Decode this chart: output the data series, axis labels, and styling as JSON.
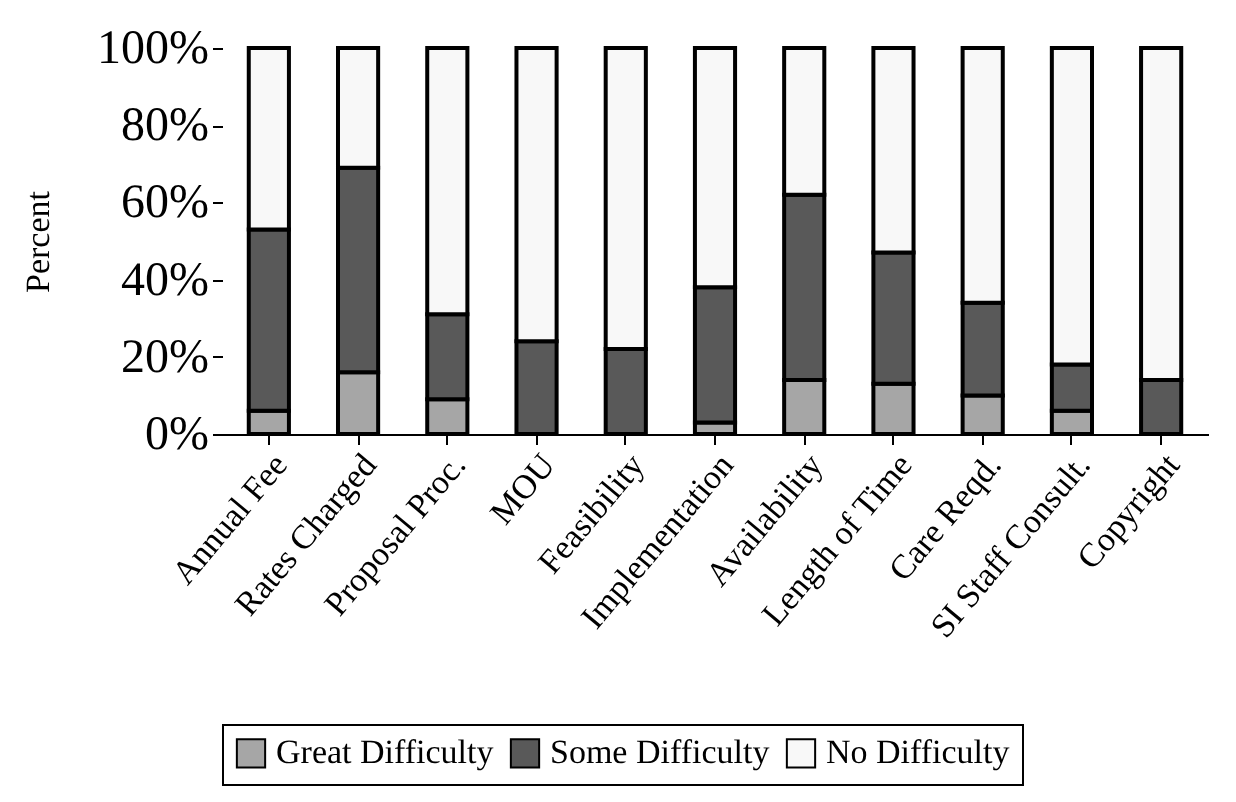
{
  "chart_data": {
    "type": "bar",
    "stacked": true,
    "ylabel": "Percent",
    "categories": [
      "Annual Fee",
      "Rates Charged",
      "Proposal Proc.",
      "MOU",
      "Feasibility",
      "Implementation",
      "Availability",
      "Length of Time",
      "Care Reqd.",
      "SI Staff Consult.",
      "Copyright"
    ],
    "series": [
      {
        "name": "Great Difficulty",
        "color": "#a6a6a6",
        "values": [
          6,
          16,
          9,
          0,
          0,
          3,
          14,
          13,
          10,
          6,
          0
        ]
      },
      {
        "name": "Some Difficulty",
        "color": "#595959",
        "values": [
          47,
          53,
          22,
          24,
          22,
          35,
          48,
          34,
          24,
          12,
          14
        ]
      },
      {
        "name": "No Difficulty",
        "color": "#f8f8f8",
        "values": [
          47,
          31,
          69,
          76,
          78,
          62,
          38,
          53,
          66,
          82,
          86
        ]
      }
    ],
    "ylim": [
      0,
      100
    ],
    "yticks": [
      {
        "value": 0,
        "label": "0%"
      },
      {
        "value": 20,
        "label": "20%"
      },
      {
        "value": 40,
        "label": "40%"
      },
      {
        "value": 60,
        "label": "60%"
      },
      {
        "value": 80,
        "label": "80%"
      },
      {
        "value": 100,
        "label": "100%"
      }
    ],
    "grid": false,
    "legend": "bottom"
  }
}
